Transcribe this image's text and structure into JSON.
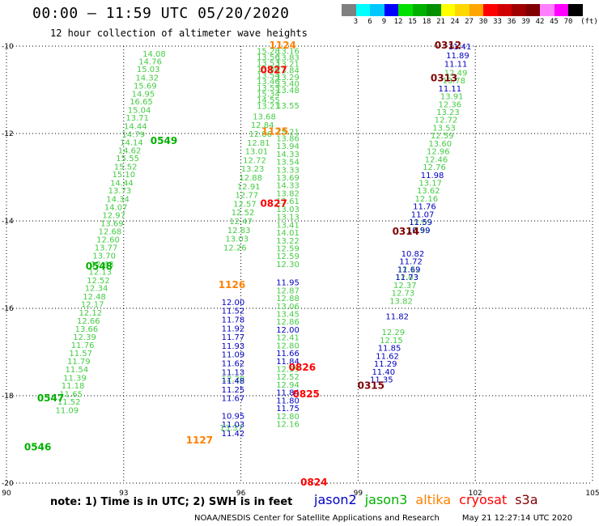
{
  "header": {
    "title": "00:00 – 11:59 UTC 05/20/2020",
    "subtitle": "12 hour collection of altimeter wave heights"
  },
  "colorbar": {
    "unit": "(ft)",
    "labels": [
      "3",
      "6",
      "9",
      "12",
      "15",
      "18",
      "21",
      "24",
      "27",
      "30",
      "33",
      "36",
      "39",
      "42",
      "45",
      "70"
    ],
    "colors": [
      "#808080",
      "#00ffff",
      "#00c8ff",
      "#0000ff",
      "#00e000",
      "#00b000",
      "#009000",
      "#ffff00",
      "#ffd700",
      "#ffa500",
      "#ff0000",
      "#d00000",
      "#a00000",
      "#800000",
      "#ff80ff",
      "#ff00ff",
      "#000000"
    ]
  },
  "note": "note:  1) Time is in UTC;  2) SWH is in feet",
  "legend": [
    {
      "name": "jason2",
      "color": "#0000c0"
    },
    {
      "name": "jason3",
      "color": "#00b000"
    },
    {
      "name": "altika",
      "color": "#ff8000"
    },
    {
      "name": "cryosat",
      "color": "#ff0000"
    },
    {
      "name": "s3a",
      "color": "#800000"
    }
  ],
  "credit": {
    "org": "NOAA/NESDIS Center for Satellite Applications and Research",
    "timestamp": "May 21 12:27:14 UTC 2020"
  },
  "chart_data": {
    "type": "scatter",
    "xlim": [
      90,
      105
    ],
    "ylim": [
      -20,
      -10
    ],
    "xticks": [
      "90",
      "93",
      "96",
      "99",
      "102",
      "105"
    ],
    "yticks": [
      "-10",
      "-12",
      "-14",
      "-16",
      "-18",
      "-20"
    ],
    "grid": true,
    "colors": {
      "jason2": "#0000c0",
      "jason3": "#00b000",
      "jason3_light": "#44cc44",
      "altika": "#ff8000",
      "cryosat": "#ff0000",
      "s3a": "#800000"
    },
    "time_labels": [
      {
        "text": "0549",
        "sat": "jason3",
        "x": 94.03,
        "y": -12.17
      },
      {
        "text": "0548",
        "sat": "jason3",
        "x": 92.37,
        "y": -15.04
      },
      {
        "text": "0547",
        "sat": "jason3",
        "x": 91.13,
        "y": -18.06
      },
      {
        "text": "0546",
        "sat": "jason3",
        "x": 90.8,
        "y": -19.18
      },
      {
        "text": "1124",
        "sat": "altika",
        "x": 97.07,
        "y": -9.98
      },
      {
        "text": "1125",
        "sat": "altika",
        "x": 96.87,
        "y": -11.95
      },
      {
        "text": "1126",
        "sat": "altika",
        "x": 95.77,
        "y": -15.46
      },
      {
        "text": "1127",
        "sat": "altika",
        "x": 94.94,
        "y": -19.02
      },
      {
        "text": "0827",
        "sat": "cryosat",
        "x": 96.84,
        "y": -10.55
      },
      {
        "text": "0827",
        "sat": "cryosat",
        "x": 96.84,
        "y": -13.6
      },
      {
        "text": "0826",
        "sat": "cryosat",
        "x": 97.57,
        "y": -17.35
      },
      {
        "text": "0825",
        "sat": "cryosat",
        "x": 97.67,
        "y": -17.96
      },
      {
        "text": "0824",
        "sat": "cryosat",
        "x": 97.87,
        "y": -19.98
      },
      {
        "text": "0312",
        "sat": "s3a",
        "x": 101.3,
        "y": -9.98
      },
      {
        "text": "0313",
        "sat": "s3a",
        "x": 101.2,
        "y": -10.73
      },
      {
        "text": "0314",
        "sat": "s3a",
        "x": 100.22,
        "y": -14.24
      },
      {
        "text": "0315",
        "sat": "s3a",
        "x": 99.33,
        "y": -17.77
      }
    ],
    "series": [
      {
        "name": "jason3",
        "color": "#44cc44",
        "points": [
          [
            93.78,
            -10.17,
            "14.08"
          ],
          [
            93.68,
            -10.34,
            "14.76"
          ],
          [
            93.63,
            -10.52,
            "15.03"
          ],
          [
            93.6,
            -10.71,
            "14.32"
          ],
          [
            93.55,
            -10.9,
            "15.69"
          ],
          [
            93.5,
            -11.08,
            "14.95"
          ],
          [
            93.45,
            -11.26,
            "16.65"
          ],
          [
            93.4,
            -11.45,
            "15.04"
          ],
          [
            93.35,
            -11.63,
            "13.71"
          ],
          [
            93.3,
            -11.82,
            "14.44"
          ],
          [
            93.25,
            -12.01,
            "14.79"
          ],
          [
            93.2,
            -12.19,
            "14.14"
          ],
          [
            93.15,
            -12.38,
            "14.62"
          ],
          [
            93.1,
            -12.56,
            "15.55"
          ],
          [
            93.05,
            -12.75,
            "15.52"
          ],
          [
            93.0,
            -12.93,
            "15.10"
          ],
          [
            92.95,
            -13.12,
            "14.44"
          ],
          [
            92.9,
            -13.3,
            "13.73"
          ],
          [
            92.85,
            -13.49,
            "14.34"
          ],
          [
            92.8,
            -13.68,
            "14.07"
          ],
          [
            92.75,
            -13.86,
            "12.97"
          ],
          [
            92.7,
            -14.05,
            "13.69"
          ],
          [
            92.65,
            -14.23,
            "12.68"
          ],
          [
            92.6,
            -14.42,
            "12.60"
          ],
          [
            92.55,
            -14.6,
            "13.77"
          ],
          [
            92.5,
            -14.79,
            "13.70"
          ],
          [
            92.45,
            -14.98,
            "12.43"
          ],
          [
            92.4,
            -15.16,
            "12.13"
          ],
          [
            92.35,
            -15.35,
            "12.52"
          ],
          [
            92.3,
            -15.53,
            "12.34"
          ],
          [
            92.25,
            -15.72,
            "12.48"
          ],
          [
            92.2,
            -15.9,
            "12.17"
          ],
          [
            92.15,
            -16.09,
            "12.12"
          ],
          [
            92.1,
            -16.28,
            "12.66"
          ],
          [
            92.05,
            -16.46,
            "13.66"
          ],
          [
            92.0,
            -16.65,
            "12.39"
          ],
          [
            91.95,
            -16.83,
            "11.76"
          ],
          [
            91.9,
            -17.02,
            "11.57"
          ],
          [
            91.85,
            -17.2,
            "11.79"
          ],
          [
            91.8,
            -17.39,
            "11.54"
          ],
          [
            91.75,
            -17.58,
            "11.39"
          ],
          [
            91.7,
            -17.76,
            "11.18"
          ],
          [
            91.65,
            -17.95,
            "11.65"
          ],
          [
            91.6,
            -18.13,
            "11.52"
          ],
          [
            91.55,
            -18.32,
            "11.09"
          ]
        ]
      },
      {
        "name": "jason3",
        "color": "#44cc44",
        "points": [
          [
            96.7,
            -10.1,
            "15.28"
          ],
          [
            96.7,
            -10.24,
            "13.56"
          ],
          [
            96.7,
            -10.38,
            "13.53"
          ],
          [
            96.7,
            -10.52,
            "15.06"
          ],
          [
            96.7,
            -10.66,
            "13.54"
          ],
          [
            96.7,
            -10.8,
            "13.46"
          ],
          [
            96.7,
            -10.94,
            "13.55"
          ],
          [
            96.7,
            -11.08,
            "15.34"
          ],
          [
            96.7,
            -11.22,
            "14.55"
          ],
          [
            96.7,
            -11.36,
            "13.21"
          ],
          [
            96.6,
            -11.6,
            "13.68"
          ],
          [
            96.55,
            -11.8,
            "12.84"
          ],
          [
            96.5,
            -12.0,
            "12.86"
          ],
          [
            96.45,
            -12.2,
            "12.81"
          ],
          [
            96.4,
            -12.4,
            "13.01"
          ],
          [
            96.35,
            -12.6,
            "12.72"
          ],
          [
            96.3,
            -12.8,
            "13.23"
          ],
          [
            96.25,
            -13.0,
            "12.88"
          ],
          [
            96.2,
            -13.2,
            "12.91"
          ],
          [
            96.15,
            -13.4,
            "12.77"
          ],
          [
            96.1,
            -13.6,
            "12.57"
          ],
          [
            96.05,
            -13.8,
            "12.52"
          ],
          [
            96.0,
            -14.0,
            "12.47"
          ],
          [
            95.95,
            -14.2,
            "12.83"
          ],
          [
            95.9,
            -14.4,
            "13.03"
          ],
          [
            95.85,
            -14.6,
            "12.26"
          ],
          [
            95.8,
            -17.6,
            "12.28"
          ],
          [
            95.75,
            -18.72,
            "13.37"
          ]
        ]
      },
      {
        "name": "jason3",
        "color": "#44cc44",
        "points": [
          [
            97.2,
            -10.1,
            "13.16"
          ],
          [
            97.2,
            -10.25,
            "13.83"
          ],
          [
            97.2,
            -10.4,
            "13.21"
          ],
          [
            97.2,
            -10.55,
            "13.84"
          ],
          [
            97.2,
            -10.7,
            "13.29"
          ],
          [
            97.2,
            -10.85,
            "13.40"
          ],
          [
            97.2,
            -11.0,
            "13.48"
          ],
          [
            97.2,
            -11.35,
            "13.55"
          ],
          [
            97.2,
            -11.95,
            "15.21"
          ],
          [
            97.2,
            -12.1,
            "13.86"
          ],
          [
            97.2,
            -12.28,
            "13.94"
          ],
          [
            97.2,
            -12.46,
            "14.33"
          ],
          [
            97.2,
            -12.64,
            "13.54"
          ],
          [
            97.2,
            -12.82,
            "13.33"
          ],
          [
            97.2,
            -13.0,
            "13.69"
          ],
          [
            97.2,
            -13.18,
            "14.33"
          ],
          [
            97.2,
            -13.36,
            "13.82"
          ],
          [
            97.2,
            -13.54,
            "13.61"
          ],
          [
            97.2,
            -13.72,
            "13.03"
          ],
          [
            97.2,
            -13.9,
            "13.13"
          ],
          [
            97.2,
            -14.08,
            "13.41"
          ],
          [
            97.2,
            -14.26,
            "14.01"
          ],
          [
            97.2,
            -14.44,
            "13.22"
          ],
          [
            97.2,
            -14.62,
            "12.59"
          ],
          [
            97.2,
            -14.8,
            "12.59"
          ],
          [
            97.2,
            -14.98,
            "12.30"
          ],
          [
            97.2,
            -15.58,
            "12.87"
          ],
          [
            97.2,
            -15.76,
            "12.88"
          ],
          [
            97.2,
            -15.94,
            "13.06"
          ],
          [
            97.2,
            -16.12,
            "13.45"
          ],
          [
            97.2,
            -16.3,
            "12.86"
          ],
          [
            97.2,
            -16.66,
            "12.41"
          ],
          [
            97.2,
            -16.84,
            "12.80"
          ],
          [
            97.2,
            -17.38,
            "12.59"
          ],
          [
            97.2,
            -17.56,
            "12.52"
          ],
          [
            97.2,
            -17.74,
            "12.94"
          ],
          [
            97.2,
            -18.46,
            "12.80"
          ],
          [
            97.2,
            -18.64,
            "12.16"
          ]
        ]
      },
      {
        "name": "jason3",
        "color": "#44cc44",
        "points": [
          [
            101.5,
            -10.6,
            "12.49"
          ],
          [
            101.45,
            -10.78,
            "13.78"
          ],
          [
            101.4,
            -11.14,
            "13.91"
          ],
          [
            101.35,
            -11.32,
            "12.36"
          ],
          [
            101.3,
            -11.5,
            "13.23"
          ],
          [
            101.25,
            -11.68,
            "12.72"
          ],
          [
            101.2,
            -11.86,
            "13.53"
          ],
          [
            101.15,
            -12.04,
            "12.59"
          ],
          [
            101.1,
            -12.22,
            "13.60"
          ],
          [
            101.05,
            -12.4,
            "12.96"
          ],
          [
            101.0,
            -12.58,
            "12.46"
          ],
          [
            100.95,
            -12.76,
            "12.76"
          ],
          [
            100.85,
            -13.12,
            "13.17"
          ],
          [
            100.8,
            -13.3,
            "13.62"
          ],
          [
            100.75,
            -13.48,
            "12.16"
          ],
          [
            100.6,
            -14.02,
            "12.09"
          ],
          [
            100.55,
            -14.2,
            "12.50"
          ],
          [
            100.3,
            -15.1,
            "12.12"
          ],
          [
            100.25,
            -15.28,
            "12.03"
          ],
          [
            100.2,
            -15.46,
            "12.37"
          ],
          [
            100.15,
            -15.64,
            "12.73"
          ],
          [
            100.1,
            -15.82,
            "13.82"
          ],
          [
            99.9,
            -16.54,
            "12.29"
          ],
          [
            99.85,
            -16.72,
            "12.15"
          ]
        ]
      },
      {
        "name": "jason2",
        "color": "#0000c0",
        "points": [
          [
            101.6,
            -10.0,
            "11.41"
          ],
          [
            101.55,
            -10.2,
            "11.89"
          ],
          [
            101.5,
            -10.4,
            "11.11"
          ],
          [
            101.35,
            -10.96,
            "11.11"
          ],
          [
            100.9,
            -12.94,
            "11.98"
          ],
          [
            100.7,
            -13.66,
            "11.76"
          ],
          [
            100.65,
            -13.84,
            "11.07"
          ],
          [
            100.6,
            -14.02,
            "11.59"
          ],
          [
            100.55,
            -14.2,
            "10.99"
          ],
          [
            100.4,
            -14.74,
            "10.82"
          ],
          [
            100.35,
            -14.92,
            "11.72"
          ],
          [
            100.3,
            -15.1,
            "11.69"
          ],
          [
            100.25,
            -15.28,
            "11.73"
          ],
          [
            100.0,
            -16.18,
            "11.82"
          ],
          [
            99.8,
            -16.9,
            "11.85"
          ],
          [
            99.75,
            -17.08,
            "11.62"
          ],
          [
            99.7,
            -17.26,
            "11.29"
          ],
          [
            99.65,
            -17.44,
            "11.40"
          ],
          [
            99.6,
            -17.62,
            "11.35"
          ]
        ]
      },
      {
        "name": "jason2",
        "color": "#0000c0",
        "points": [
          [
            95.8,
            -15.85,
            "12.00"
          ],
          [
            95.8,
            -16.05,
            "11.52"
          ],
          [
            95.8,
            -16.25,
            "11.78"
          ],
          [
            95.8,
            -16.45,
            "11.92"
          ],
          [
            95.8,
            -16.65,
            "11.77"
          ],
          [
            95.8,
            -16.85,
            "11.93"
          ],
          [
            95.8,
            -17.05,
            "11.09"
          ],
          [
            95.8,
            -17.25,
            "11.62"
          ],
          [
            95.8,
            -17.45,
            "11.13"
          ],
          [
            95.8,
            -17.65,
            "11.48"
          ],
          [
            95.8,
            -17.85,
            "11.25"
          ],
          [
            95.8,
            -18.05,
            "11.67"
          ],
          [
            95.8,
            -18.45,
            "10.95"
          ],
          [
            95.8,
            -18.65,
            "11.03"
          ],
          [
            95.8,
            -18.85,
            "11.42"
          ]
        ]
      },
      {
        "name": "jason2",
        "color": "#0000c0",
        "points": [
          [
            97.2,
            -15.4,
            "11.95"
          ],
          [
            97.2,
            -16.48,
            "12.00"
          ],
          [
            97.2,
            -17.02,
            "11.66"
          ],
          [
            97.2,
            -17.2,
            "11.84"
          ],
          [
            97.2,
            -17.92,
            "11.84"
          ],
          [
            97.2,
            -18.1,
            "11.80"
          ],
          [
            97.2,
            -18.28,
            "11.75"
          ]
        ]
      }
    ]
  }
}
